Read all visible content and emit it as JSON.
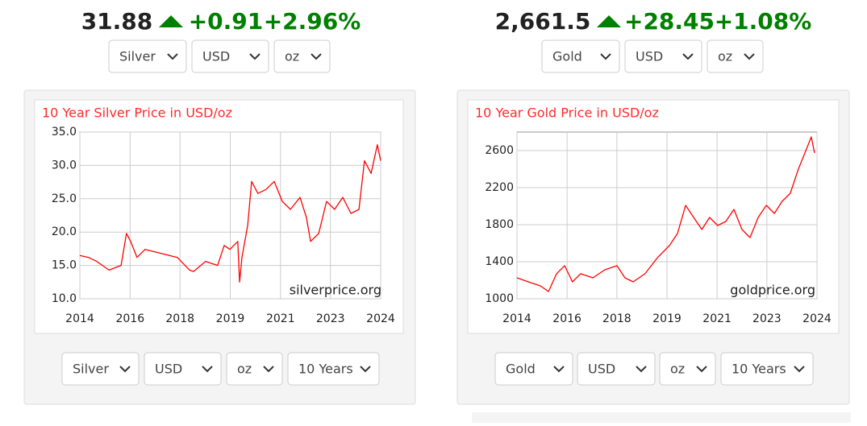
{
  "quotes": [
    {
      "price": "31.88",
      "change": "+0.91",
      "percent": "+2.96%",
      "selects": [
        "Silver",
        "USD",
        "oz"
      ]
    },
    {
      "price": "2,661.5",
      "change": "+28.45",
      "percent": "+1.08%",
      "selects": [
        "Gold",
        "USD",
        "oz"
      ]
    }
  ],
  "controls": [
    [
      "Silver",
      "USD",
      "oz",
      "10 Years"
    ],
    [
      "Gold",
      "USD",
      "oz",
      "10 Years"
    ]
  ],
  "chart_data": [
    {
      "type": "line",
      "title": "10 Year Silver Price in USD/oz",
      "source": "silverprice.org",
      "color": "#ff0000",
      "grid": true,
      "x": [
        2014.3,
        2014.59,
        2014.86,
        2015.27,
        2015.67,
        2015.85,
        2015.99,
        2016.2,
        2016.47,
        2017.01,
        2017.54,
        2017.95,
        2018.08,
        2018.48,
        2018.88,
        2019.1,
        2019.29,
        2019.55,
        2019.61,
        2019.69,
        2019.88,
        2020.01,
        2020.22,
        2020.49,
        2020.76,
        2021.03,
        2021.3,
        2021.62,
        2021.83,
        2021.97,
        2022.24,
        2022.5,
        2022.77,
        2023.04,
        2023.31,
        2023.58,
        2023.76,
        2023.98,
        2024.19,
        2024.3
      ],
      "values": [
        16.5,
        16.2,
        15.6,
        14.3,
        15.0,
        19.8,
        18.6,
        16.2,
        17.4,
        16.8,
        16.2,
        14.3,
        14.1,
        15.6,
        15.0,
        18.0,
        17.4,
        18.6,
        12.5,
        16.2,
        21.0,
        27.6,
        25.8,
        26.4,
        27.6,
        24.6,
        23.4,
        25.2,
        22.2,
        18.6,
        19.8,
        24.6,
        23.4,
        25.2,
        22.8,
        23.4,
        30.7,
        28.8,
        33.1,
        30.7
      ],
      "xlim": [
        2014.3,
        2024.3
      ],
      "xticks": [
        {
          "value": 2014.3,
          "label": "2014"
        },
        {
          "value": 2015.97,
          "label": "2016"
        },
        {
          "value": 2017.63,
          "label": "2018"
        },
        {
          "value": 2019.3,
          "label": "2019"
        },
        {
          "value": 2020.97,
          "label": "2021"
        },
        {
          "value": 2022.63,
          "label": "2023"
        },
        {
          "value": 2024.3,
          "label": "2024"
        }
      ],
      "ylim": [
        10,
        35
      ],
      "yticks": [
        {
          "value": 10,
          "label": "10.0"
        },
        {
          "value": 15,
          "label": "15.0"
        },
        {
          "value": 20,
          "label": "20.0"
        },
        {
          "value": 25,
          "label": "25.0"
        },
        {
          "value": 30,
          "label": "30.0"
        },
        {
          "value": 35,
          "label": "35.0"
        }
      ]
    },
    {
      "type": "line",
      "title": "10 Year Gold Price in USD/oz",
      "source": "goldprice.org",
      "color": "#ff0000",
      "grid": true,
      "x": [
        2014.3,
        2014.68,
        2015.08,
        2015.35,
        2015.62,
        2015.89,
        2016.15,
        2016.42,
        2016.83,
        2017.23,
        2017.63,
        2017.9,
        2018.17,
        2018.57,
        2018.98,
        2019.38,
        2019.65,
        2019.92,
        2020.19,
        2020.46,
        2020.72,
        2020.99,
        2021.26,
        2021.53,
        2021.8,
        2022.07,
        2022.34,
        2022.61,
        2022.88,
        2023.14,
        2023.41,
        2023.68,
        2023.95,
        2024.11,
        2024.22
      ],
      "values": [
        1226,
        1183,
        1139,
        1078,
        1270,
        1357,
        1183,
        1270,
        1226,
        1313,
        1357,
        1226,
        1183,
        1270,
        1443,
        1574,
        1704,
        2009,
        1878,
        1748,
        1878,
        1791,
        1835,
        1965,
        1748,
        1661,
        1878,
        2009,
        1922,
        2052,
        2139,
        2400,
        2617,
        2748,
        2574
      ],
      "xlim": [
        2014.3,
        2024.3
      ],
      "xticks": [
        {
          "value": 2014.3,
          "label": "2014"
        },
        {
          "value": 2015.97,
          "label": "2016"
        },
        {
          "value": 2017.63,
          "label": "2018"
        },
        {
          "value": 2019.3,
          "label": "2019"
        },
        {
          "value": 2020.97,
          "label": "2021"
        },
        {
          "value": 2022.63,
          "label": "2023"
        },
        {
          "value": 2024.3,
          "label": "2024"
        }
      ],
      "ylim": [
        1000,
        2800
      ],
      "yticks": [
        1000,
        1400,
        1800,
        2200,
        2600
      ]
    }
  ]
}
